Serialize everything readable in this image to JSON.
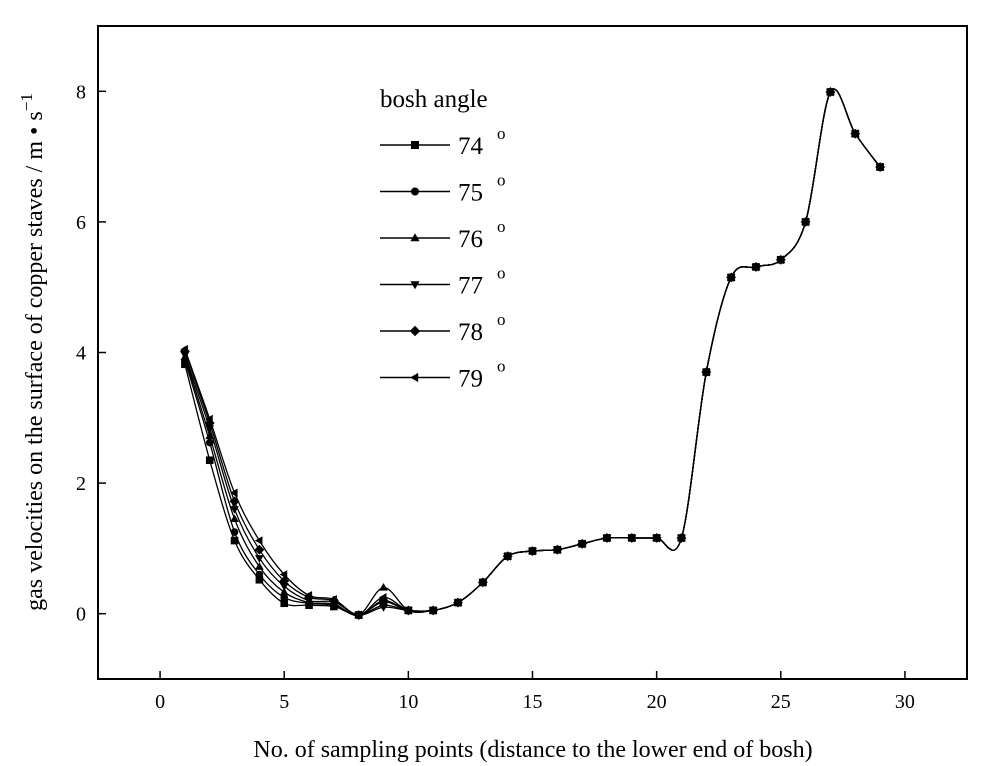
{
  "chart_data": {
    "type": "line",
    "xlabel": "No. of sampling points (distance to the lower end of bosh)",
    "ylabel": "gas velocities on the surface of copper staves / m • s",
    "ylabel_unit_superscript": "−1",
    "xlim": [
      -2.5,
      32.5
    ],
    "ylim": [
      -1,
      9
    ],
    "xticks": [
      0,
      5,
      10,
      15,
      20,
      25,
      30
    ],
    "yticks": [
      0,
      2,
      4,
      6,
      8
    ],
    "grid": false,
    "legend": {
      "title": "bosh angle",
      "position": "upper-left-center",
      "degree_symbol": "o"
    },
    "series": [
      {
        "name": "74",
        "marker": "square",
        "x": [
          1,
          2,
          3,
          4,
          5,
          6,
          7,
          8,
          9,
          10,
          11,
          12,
          13,
          14,
          15,
          16,
          17,
          18,
          19,
          20,
          21,
          22,
          23,
          24,
          25,
          26,
          27,
          28,
          29
        ],
        "values": [
          3.82,
          2.35,
          1.12,
          0.52,
          0.16,
          0.13,
          0.11,
          -0.02,
          0.18,
          0.05,
          0.05,
          0.17,
          0.48,
          0.88,
          0.96,
          0.98,
          1.07,
          1.16,
          1.16,
          1.16,
          1.16,
          3.7,
          5.15,
          5.31,
          5.42,
          6.0,
          7.99,
          7.35,
          6.84
        ]
      },
      {
        "name": "75",
        "marker": "circle",
        "x": [
          1,
          2,
          3,
          4,
          5,
          6,
          7,
          8,
          9,
          10,
          11,
          12,
          13,
          14,
          15,
          16,
          17,
          18,
          19,
          20,
          21,
          22,
          23,
          24,
          25,
          26,
          27,
          28,
          29
        ],
        "values": [
          3.88,
          2.62,
          1.25,
          0.6,
          0.25,
          0.16,
          0.13,
          -0.02,
          0.13,
          0.05,
          0.05,
          0.17,
          0.48,
          0.88,
          0.96,
          0.98,
          1.07,
          1.16,
          1.16,
          1.16,
          1.16,
          3.7,
          5.15,
          5.31,
          5.42,
          6.0,
          7.99,
          7.35,
          6.84
        ]
      },
      {
        "name": "76",
        "marker": "triangle-up",
        "x": [
          1,
          2,
          3,
          4,
          5,
          6,
          7,
          8,
          9,
          10,
          11,
          12,
          13,
          14,
          15,
          16,
          17,
          18,
          19,
          20,
          21,
          22,
          23,
          24,
          25,
          26,
          27,
          28,
          29
        ],
        "values": [
          3.93,
          2.72,
          1.45,
          0.72,
          0.33,
          0.17,
          0.15,
          -0.02,
          0.4,
          0.05,
          0.05,
          0.17,
          0.48,
          0.88,
          0.96,
          0.98,
          1.07,
          1.16,
          1.16,
          1.16,
          1.16,
          3.7,
          5.15,
          5.31,
          5.42,
          6.0,
          7.99,
          7.35,
          6.84
        ]
      },
      {
        "name": "77",
        "marker": "triangle-down",
        "x": [
          1,
          2,
          3,
          4,
          5,
          6,
          7,
          8,
          9,
          10,
          11,
          12,
          13,
          14,
          15,
          16,
          17,
          18,
          19,
          20,
          21,
          22,
          23,
          24,
          25,
          26,
          27,
          28,
          29
        ],
        "values": [
          3.96,
          2.84,
          1.6,
          0.85,
          0.42,
          0.2,
          0.18,
          -0.02,
          0.1,
          0.05,
          0.05,
          0.17,
          0.48,
          0.88,
          0.96,
          0.98,
          1.07,
          1.16,
          1.16,
          1.16,
          1.16,
          3.7,
          5.15,
          5.31,
          5.42,
          6.0,
          7.99,
          7.35,
          6.84
        ]
      },
      {
        "name": "78",
        "marker": "diamond",
        "x": [
          1,
          2,
          3,
          4,
          5,
          6,
          7,
          8,
          9,
          10,
          11,
          12,
          13,
          14,
          15,
          16,
          17,
          18,
          19,
          20,
          21,
          22,
          23,
          24,
          25,
          26,
          27,
          28,
          29
        ],
        "values": [
          4.02,
          2.92,
          1.72,
          0.98,
          0.5,
          0.25,
          0.2,
          -0.02,
          0.2,
          0.05,
          0.05,
          0.17,
          0.48,
          0.88,
          0.96,
          0.98,
          1.07,
          1.16,
          1.16,
          1.16,
          1.16,
          3.7,
          5.15,
          5.31,
          5.42,
          6.0,
          7.99,
          7.35,
          6.84
        ]
      },
      {
        "name": "79",
        "marker": "triangle-left",
        "x": [
          1,
          2,
          3,
          4,
          5,
          6,
          7,
          8,
          9,
          10,
          11,
          12,
          13,
          14,
          15,
          16,
          17,
          18,
          19,
          20,
          21,
          22,
          23,
          24,
          25,
          26,
          27,
          28,
          29
        ],
        "values": [
          4.05,
          2.98,
          1.85,
          1.12,
          0.6,
          0.28,
          0.22,
          -0.02,
          0.25,
          0.05,
          0.05,
          0.17,
          0.48,
          0.88,
          0.96,
          0.98,
          1.07,
          1.16,
          1.16,
          1.16,
          1.16,
          3.7,
          5.15,
          5.31,
          5.42,
          6.0,
          7.99,
          7.35,
          6.84
        ]
      }
    ]
  }
}
